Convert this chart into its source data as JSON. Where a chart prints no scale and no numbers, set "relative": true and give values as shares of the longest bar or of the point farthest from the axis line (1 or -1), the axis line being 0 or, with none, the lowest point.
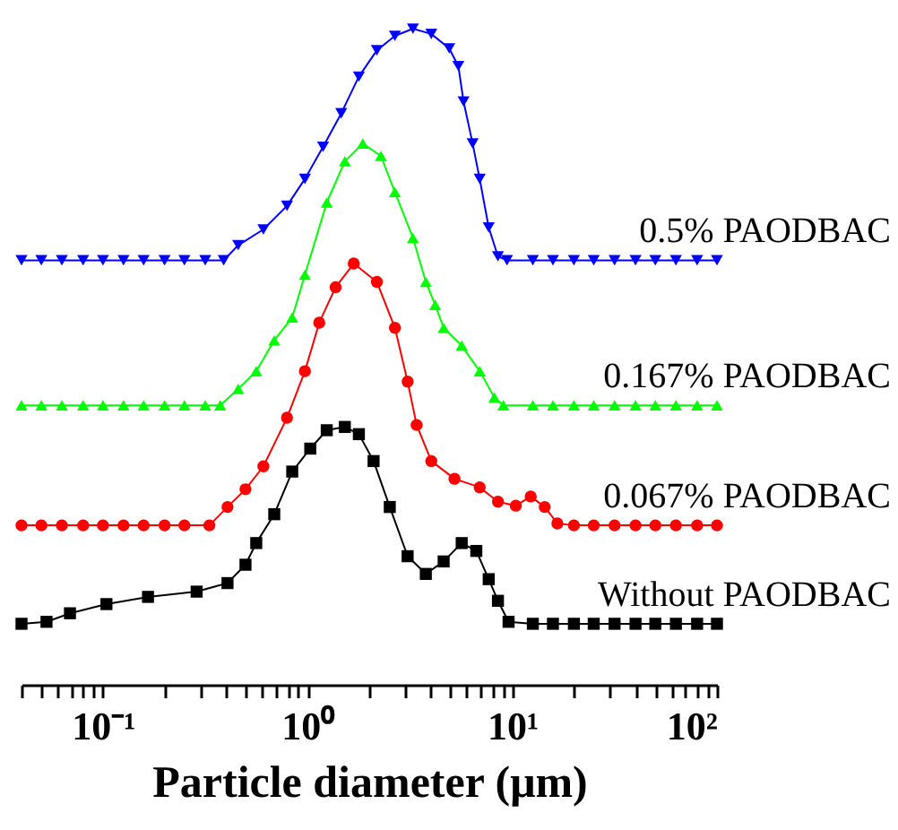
{
  "chart_data": {
    "type": "line",
    "relative": true,
    "log": "x",
    "xlabel": "Particle diameter (μm)",
    "xlim": [
      0.04,
      100
    ],
    "xticks": [
      {
        "value": 0.04,
        "label": null
      },
      {
        "value": 0.05,
        "label": null
      },
      {
        "value": 0.06,
        "label": null
      },
      {
        "value": 0.07,
        "label": null
      },
      {
        "value": 0.08,
        "label": null
      },
      {
        "value": 0.09,
        "label": null
      },
      {
        "value": 0.1,
        "label": "10⁻¹"
      },
      {
        "value": 0.2,
        "label": null
      },
      {
        "value": 0.3,
        "label": null
      },
      {
        "value": 0.4,
        "label": null
      },
      {
        "value": 0.5,
        "label": null
      },
      {
        "value": 0.6,
        "label": null
      },
      {
        "value": 0.7,
        "label": null
      },
      {
        "value": 0.8,
        "label": null
      },
      {
        "value": 0.9,
        "label": null
      },
      {
        "value": 1,
        "label": "10⁰"
      },
      {
        "value": 2,
        "label": null
      },
      {
        "value": 3,
        "label": null
      },
      {
        "value": 4,
        "label": null
      },
      {
        "value": 5,
        "label": null
      },
      {
        "value": 6,
        "label": null
      },
      {
        "value": 7,
        "label": null
      },
      {
        "value": 8,
        "label": null
      },
      {
        "value": 9,
        "label": null
      },
      {
        "value": 10,
        "label": "10¹"
      },
      {
        "value": 20,
        "label": null
      },
      {
        "value": 30,
        "label": null
      },
      {
        "value": 40,
        "label": null
      },
      {
        "value": 50,
        "label": null
      },
      {
        "value": 60,
        "label": null
      },
      {
        "value": 70,
        "label": null
      },
      {
        "value": 80,
        "label": null
      },
      {
        "value": 90,
        "label": null
      },
      {
        "value": 100,
        "label": "10²"
      }
    ],
    "tick_labels": "x",
    "grid": false,
    "line_style": "solid",
    "series": [
      {
        "name": "0.5% PAODBAC",
        "color": "#0000ff",
        "marker": "triangle-down",
        "x": [
          0.04,
          0.05,
          0.063,
          0.08,
          0.1,
          0.126,
          0.158,
          0.2,
          0.25,
          0.316,
          0.389,
          0.458,
          0.608,
          0.793,
          0.97,
          1.19,
          1.46,
          1.78,
          2.18,
          2.67,
          3.27,
          4.02,
          4.92,
          5.45,
          5.78,
          6.4,
          6.93,
          7.67,
          8.51,
          9.42,
          12.6,
          15.8,
          20,
          25,
          31.6,
          40,
          50,
          63,
          80,
          100
        ],
        "values": [
          0.647,
          0.647,
          0.647,
          0.647,
          0.647,
          0.647,
          0.647,
          0.647,
          0.647,
          0.647,
          0.647,
          0.67,
          0.694,
          0.73,
          0.771,
          0.82,
          0.871,
          0.927,
          0.967,
          0.989,
          1,
          0.992,
          0.97,
          0.943,
          0.889,
          0.825,
          0.771,
          0.697,
          0.653,
          0.647,
          0.647,
          0.647,
          0.647,
          0.647,
          0.647,
          0.647,
          0.647,
          0.647,
          0.647,
          0.647
        ]
      },
      {
        "name": "0.167% PAODBAC",
        "color": "#00ff00",
        "marker": "triangle",
        "x": [
          0.04,
          0.05,
          0.063,
          0.08,
          0.1,
          0.126,
          0.158,
          0.2,
          0.25,
          0.316,
          0.374,
          0.458,
          0.561,
          0.687,
          0.841,
          0.97,
          1.24,
          1.52,
          1.86,
          2.28,
          2.67,
          3.27,
          3.78,
          4.2,
          4.62,
          5.66,
          6.93,
          8.17,
          9.04,
          12.6,
          15.8,
          20,
          25,
          31.6,
          40,
          50,
          63,
          80,
          100
        ],
        "values": [
          0.426,
          0.426,
          0.426,
          0.426,
          0.426,
          0.426,
          0.426,
          0.426,
          0.426,
          0.426,
          0.426,
          0.451,
          0.478,
          0.525,
          0.56,
          0.625,
          0.735,
          0.798,
          0.825,
          0.806,
          0.751,
          0.681,
          0.614,
          0.579,
          0.544,
          0.517,
          0.478,
          0.438,
          0.426,
          0.426,
          0.426,
          0.426,
          0.426,
          0.426,
          0.426,
          0.426,
          0.426,
          0.426,
          0.426
        ]
      },
      {
        "name": "0.067% PAODBAC",
        "color": "#ff0000",
        "marker": "circle",
        "x": [
          0.04,
          0.05,
          0.063,
          0.08,
          0.1,
          0.126,
          0.158,
          0.2,
          0.25,
          0.331,
          0.406,
          0.497,
          0.608,
          0.793,
          0.97,
          1.14,
          1.37,
          1.68,
          2.18,
          2.67,
          3.08,
          3.41,
          4.02,
          5.22,
          6.93,
          8.51,
          10.4,
          12.3,
          14.4,
          16.6,
          20,
          25,
          31.6,
          40,
          50,
          63,
          80,
          100
        ],
        "values": [
          0.243,
          0.243,
          0.243,
          0.243,
          0.243,
          0.243,
          0.243,
          0.243,
          0.243,
          0.243,
          0.271,
          0.298,
          0.333,
          0.407,
          0.478,
          0.552,
          0.606,
          0.642,
          0.614,
          0.544,
          0.462,
          0.396,
          0.341,
          0.314,
          0.301,
          0.279,
          0.273,
          0.287,
          0.271,
          0.246,
          0.243,
          0.243,
          0.243,
          0.243,
          0.243,
          0.243,
          0.243,
          0.243
        ]
      },
      {
        "name": "Without PAODBAC",
        "color": "#000000",
        "marker": "square",
        "x": [
          0.04,
          0.053,
          0.069,
          0.104,
          0.166,
          0.287,
          0.406,
          0.497,
          0.561,
          0.687,
          0.841,
          1.03,
          1.24,
          1.52,
          1.78,
          2.1,
          2.52,
          3.08,
          3.78,
          4.62,
          5.66,
          6.67,
          7.67,
          8.51,
          9.59,
          12.6,
          15.8,
          20,
          25,
          31.6,
          40,
          50,
          63,
          80,
          100
        ],
        "values": [
          0.093,
          0.096,
          0.109,
          0.123,
          0.134,
          0.142,
          0.155,
          0.183,
          0.216,
          0.26,
          0.325,
          0.36,
          0.388,
          0.393,
          0.382,
          0.341,
          0.271,
          0.196,
          0.169,
          0.188,
          0.216,
          0.204,
          0.161,
          0.128,
          0.096,
          0.093,
          0.093,
          0.093,
          0.093,
          0.093,
          0.093,
          0.093,
          0.093,
          0.093,
          0.093
        ]
      }
    ]
  }
}
